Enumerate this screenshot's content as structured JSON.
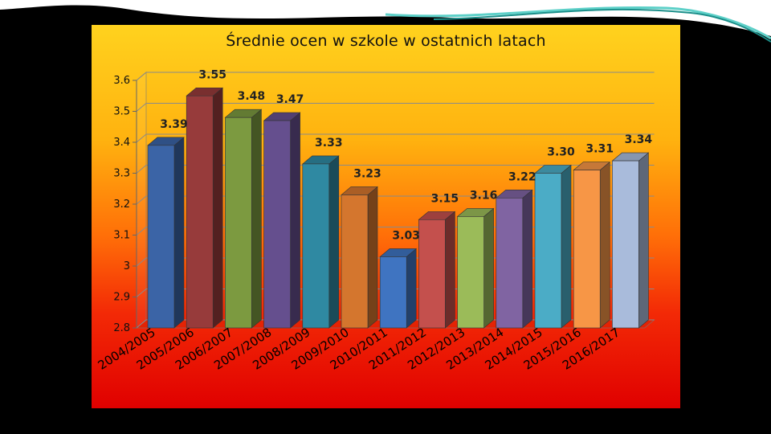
{
  "colors": {
    "background": "#000000",
    "bars": [
      "#3b64a6",
      "#973b3b",
      "#7c9a40",
      "#654f8e",
      "#2f89a2",
      "#d4762e",
      "#3f74c1",
      "#c4504d",
      "#9bbb59",
      "#8064a2",
      "#4bacc6",
      "#f79646",
      "#a9bbdb"
    ]
  },
  "chart_data": {
    "type": "bar",
    "title": "Średnie ocen w szkole w ostatnich latach",
    "xlabel": "",
    "ylabel": "",
    "categories": [
      "2004/2005",
      "2005/2006",
      "2006/2007",
      "2007/2008",
      "2008/2009",
      "2009/2010",
      "2010/2011",
      "2011/2012",
      "2012/2013",
      "2013/2014",
      "2014/2015",
      "2015/2016",
      "2016/2017"
    ],
    "values": [
      3.39,
      3.55,
      3.48,
      3.47,
      3.33,
      3.23,
      3.03,
      3.15,
      3.16,
      3.22,
      3.3,
      3.31,
      3.34
    ],
    "value_labels": [
      "3.39",
      "3.55",
      "3.48",
      "3.47",
      "3.33",
      "3.23",
      "3.03",
      "3.15",
      "3.16",
      "3.22",
      "3.30",
      "3.31",
      "3.34"
    ],
    "ylim": [
      2.8,
      3.6
    ],
    "yticks": [
      "2.8",
      "2.9",
      "3",
      "3.1",
      "3.2",
      "3.3",
      "3.4",
      "3.5",
      "3.6"
    ],
    "grid": true,
    "legend": "none",
    "style": "3d-columns"
  }
}
